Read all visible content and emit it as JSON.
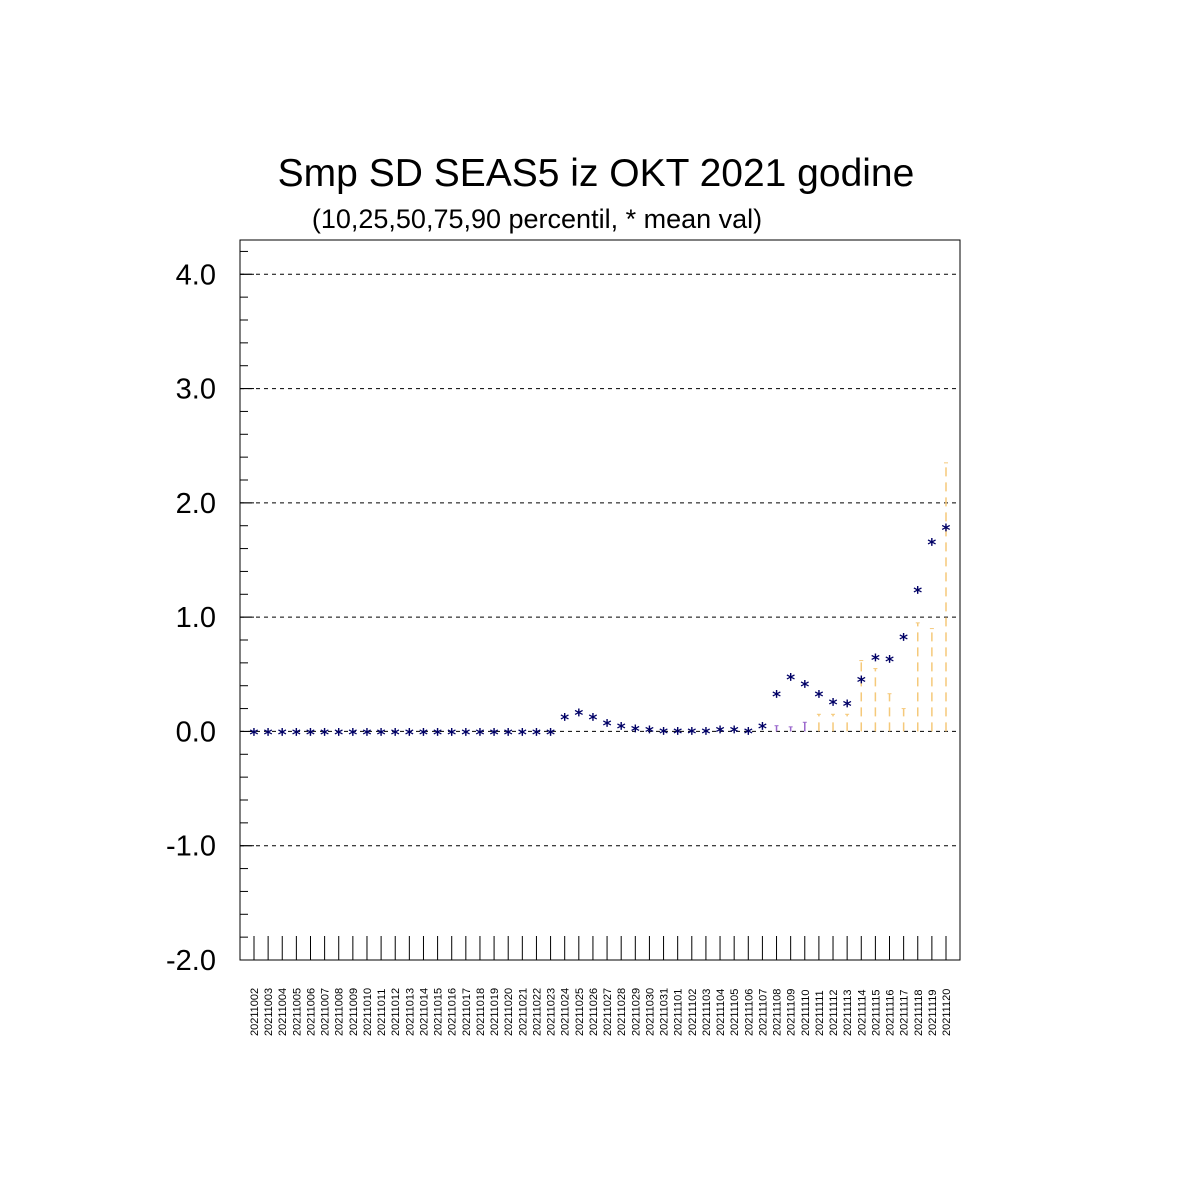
{
  "chart_data": {
    "type": "scatter",
    "title": "Smp SD SEAS5 iz OKT 2021 godine",
    "subtitle": "(10,25,50,75,90 percentil, * mean val)",
    "ylim": [
      -2.0,
      4.3
    ],
    "yticks": [
      "4.0",
      "3.0",
      "2.0",
      "1.0",
      "0.0",
      "-1.0",
      "-2.0"
    ],
    "ytick_values": [
      4.0,
      3.0,
      2.0,
      1.0,
      0.0,
      -1.0,
      -2.0
    ],
    "grid": "horizontal dashed",
    "colors": {
      "mean": "#000066",
      "whisker_low": "#9966cc",
      "whisker_high": "#f5c97a"
    },
    "categories": [
      "20211002",
      "20211003",
      "20211004",
      "20211005",
      "20211006",
      "20211007",
      "20211008",
      "20211009",
      "20211010",
      "20211011",
      "20211012",
      "20211013",
      "20211014",
      "20211015",
      "20211016",
      "20211017",
      "20211018",
      "20211019",
      "20211020",
      "20211021",
      "20211022",
      "20211023",
      "20211024",
      "20211025",
      "20211026",
      "20211027",
      "20211028",
      "20211029",
      "20211030",
      "20211031",
      "20211101",
      "20211102",
      "20211103",
      "20211104",
      "20211105",
      "20211106",
      "20211107",
      "20211108",
      "20211109",
      "20211110",
      "20211111",
      "20211112",
      "20211113",
      "20211114",
      "20211115",
      "20211116",
      "20211117",
      "20211118",
      "20211119",
      "20211120"
    ],
    "mean": [
      0,
      0,
      0,
      0,
      0,
      0,
      0,
      0,
      0,
      0,
      0,
      0,
      0,
      0,
      0,
      0,
      0,
      0,
      0,
      0,
      0,
      0,
      0.13,
      0.17,
      0.13,
      0.08,
      0.05,
      0.03,
      0.02,
      0.01,
      0.01,
      0.01,
      0.01,
      0.02,
      0.02,
      0.01,
      0.05,
      0.33,
      0.48,
      0.42,
      0.33,
      0.26,
      0.25,
      0.46,
      0.65,
      0.64,
      0.83,
      1.24,
      1.66,
      1.79
    ],
    "p90": [
      0,
      0,
      0,
      0,
      0,
      0,
      0,
      0,
      0,
      0,
      0,
      0,
      0,
      0,
      0,
      0,
      0,
      0,
      0,
      0,
      0,
      0,
      0,
      0,
      0,
      0,
      0,
      0,
      0,
      0,
      0,
      0,
      0,
      0,
      0,
      0,
      0,
      0.05,
      0.04,
      0.08,
      0.15,
      0.15,
      0.15,
      0.62,
      0.55,
      0.33,
      0.2,
      0.95,
      0.9,
      2.35
    ]
  }
}
